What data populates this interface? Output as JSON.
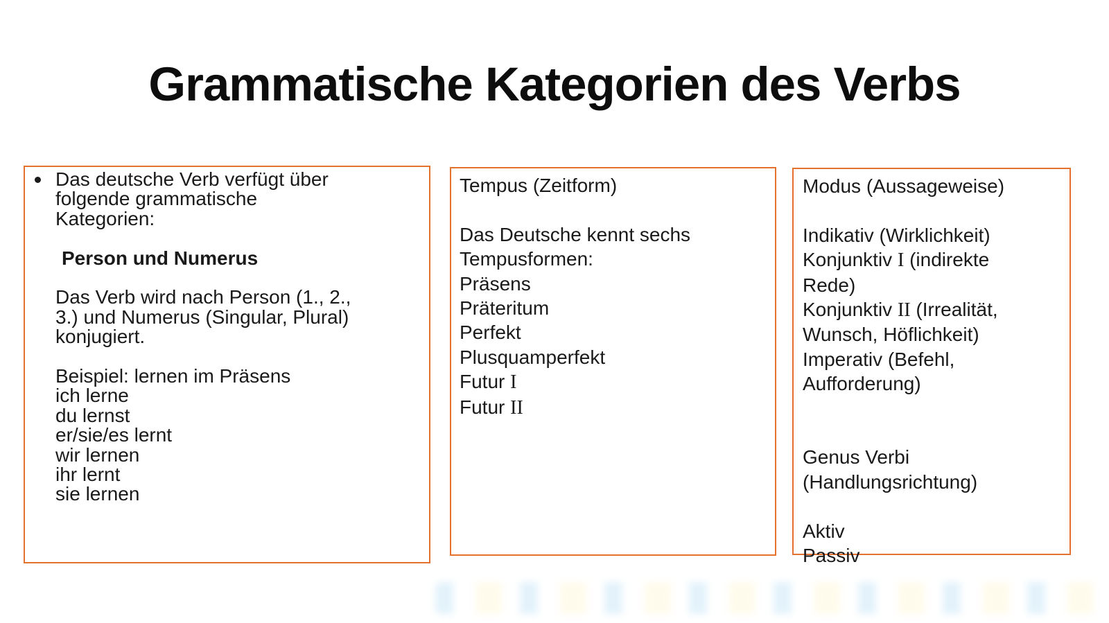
{
  "slide_title": "Grammatische Kategorien des Verbs",
  "accent_border_color": "#E4722C",
  "text_color": "#1A1A1A",
  "boxes": [
    {
      "lines": [
        {
          "text": "Das deutsche Verb verfügt über",
          "bullet": true
        },
        {
          "text": "folgende grammatische"
        },
        {
          "text": "Kategorien:"
        },
        {
          "text": ""
        },
        {
          "text": "Person und Numerus",
          "bold": true,
          "indent": true
        },
        {
          "text": ""
        },
        {
          "text": "Das Verb wird nach Person (1., 2.,"
        },
        {
          "text": "3.) und Numerus (Singular, Plural)"
        },
        {
          "text": "konjugiert."
        },
        {
          "text": ""
        },
        {
          "text": "Beispiel: lernen im Präsens"
        },
        {
          "text": "ich lerne"
        },
        {
          "text": "du lernst"
        },
        {
          "text": "er/sie/es lernt"
        },
        {
          "text": "wir lernen"
        },
        {
          "text": "ihr lernt"
        },
        {
          "text": "sie lernen"
        }
      ]
    },
    {
      "lines": [
        {
          "text": "Tempus (Zeitform)"
        },
        {
          "text": ""
        },
        {
          "text": "Das Deutsche kennt sechs"
        },
        {
          "text": "Tempusformen:"
        },
        {
          "text": "Präsens"
        },
        {
          "text": "Präteritum"
        },
        {
          "text": "Perfekt"
        },
        {
          "text": "Plusquamperfekt"
        },
        {
          "text": "Futur I"
        },
        {
          "text": "Futur II"
        }
      ]
    },
    {
      "lines": [
        {
          "text": "Modus (Aussageweise)"
        },
        {
          "text": ""
        },
        {
          "text": "Indikativ (Wirklichkeit)"
        },
        {
          "text": "Konjunktiv I (indirekte"
        },
        {
          "text": "Rede)"
        },
        {
          "text": "Konjunktiv II (Irrealität,"
        },
        {
          "text": "Wunsch, Höflichkeit)"
        },
        {
          "text": "Imperativ (Befehl,"
        },
        {
          "text": "Aufforderung)"
        },
        {
          "text": ""
        },
        {
          "text": ""
        },
        {
          "text": "Genus Verbi"
        },
        {
          "text": "(Handlungsrichtung)"
        },
        {
          "text": ""
        },
        {
          "text": "Aktiv"
        },
        {
          "text": "Passiv"
        }
      ]
    }
  ]
}
